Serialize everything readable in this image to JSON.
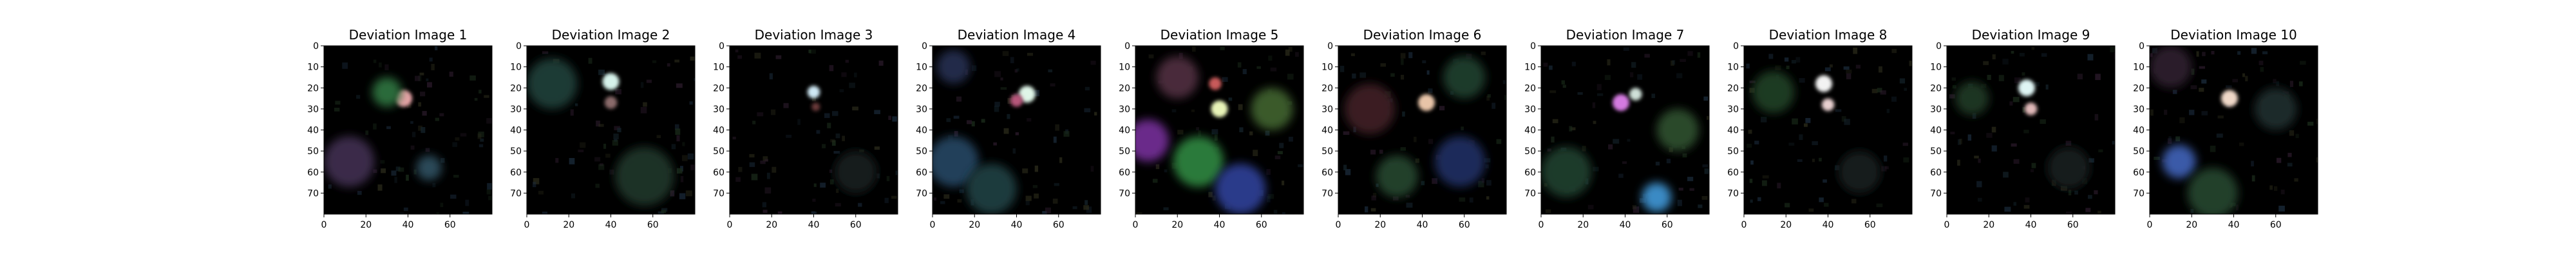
{
  "figure": {
    "background": "#ffffff"
  },
  "chart_data": [
    {
      "type": "heatmap",
      "title": "Deviation Image 1",
      "xlim": [
        0,
        80
      ],
      "ylim": [
        80,
        0
      ],
      "xticks": [
        0,
        20,
        40,
        60
      ],
      "yticks": [
        0,
        10,
        20,
        30,
        40,
        50,
        60,
        70
      ],
      "background": "#000000",
      "highlights": [
        {
          "x": 38,
          "y": 25,
          "r": 4,
          "color": "#e9a4a8"
        },
        {
          "x": 30,
          "y": 22,
          "r": 7,
          "color": "#2a6a3a"
        },
        {
          "x": 12,
          "y": 55,
          "r": 12,
          "color": "#3a2a4a"
        },
        {
          "x": 50,
          "y": 58,
          "r": 6,
          "color": "#2c4a58"
        }
      ]
    },
    {
      "type": "heatmap",
      "title": "Deviation Image 2",
      "xlim": [
        0,
        80
      ],
      "ylim": [
        80,
        0
      ],
      "xticks": [
        0,
        20,
        40,
        60
      ],
      "yticks": [
        0,
        10,
        20,
        30,
        40,
        50,
        60,
        70
      ],
      "background": "#000000",
      "highlights": [
        {
          "x": 40,
          "y": 17,
          "r": 4,
          "color": "#d6f2ea"
        },
        {
          "x": 40,
          "y": 27,
          "r": 3,
          "color": "#8a6a6a"
        },
        {
          "x": 12,
          "y": 18,
          "r": 12,
          "color": "#1c3a34"
        },
        {
          "x": 56,
          "y": 62,
          "r": 14,
          "color": "#1a3028"
        }
      ]
    },
    {
      "type": "heatmap",
      "title": "Deviation Image 3",
      "xlim": [
        0,
        80
      ],
      "ylim": [
        80,
        0
      ],
      "xticks": [
        0,
        20,
        40,
        60
      ],
      "yticks": [
        0,
        10,
        20,
        30,
        40,
        50,
        60,
        70
      ],
      "background": "#000000",
      "highlights": [
        {
          "x": 40,
          "y": 22,
          "r": 3,
          "color": "#cfe8f4"
        },
        {
          "x": 41,
          "y": 29,
          "r": 2,
          "color": "#6a3a3a"
        },
        {
          "x": 60,
          "y": 60,
          "r": 10,
          "color": "#141e1e"
        }
      ]
    },
    {
      "type": "heatmap",
      "title": "Deviation Image 4",
      "xlim": [
        0,
        80
      ],
      "ylim": [
        80,
        0
      ],
      "xticks": [
        0,
        20,
        40,
        60
      ],
      "yticks": [
        0,
        10,
        20,
        30,
        40,
        50,
        60,
        70
      ],
      "background": "#000000",
      "highlights": [
        {
          "x": 45,
          "y": 23,
          "r": 4,
          "color": "#dff5e8"
        },
        {
          "x": 40,
          "y": 26,
          "r": 3,
          "color": "#b6567a"
        },
        {
          "x": 10,
          "y": 55,
          "r": 12,
          "color": "#24405a"
        },
        {
          "x": 28,
          "y": 68,
          "r": 12,
          "color": "#1c3a3c"
        },
        {
          "x": 10,
          "y": 10,
          "r": 8,
          "color": "#242c4a"
        }
      ]
    },
    {
      "type": "heatmap",
      "title": "Deviation Image 5",
      "xlim": [
        0,
        80
      ],
      "ylim": [
        80,
        0
      ],
      "xticks": [
        0,
        20,
        40,
        60
      ],
      "yticks": [
        0,
        10,
        20,
        30,
        40,
        50,
        60,
        70
      ],
      "background": "#000000",
      "highlights": [
        {
          "x": 40,
          "y": 30,
          "r": 4,
          "color": "#e8f4b8"
        },
        {
          "x": 38,
          "y": 18,
          "r": 3,
          "color": "#c85a5a"
        },
        {
          "x": 6,
          "y": 45,
          "r": 10,
          "color": "#6a2a8a"
        },
        {
          "x": 30,
          "y": 55,
          "r": 12,
          "color": "#2a7a3a"
        },
        {
          "x": 50,
          "y": 68,
          "r": 12,
          "color": "#2a3a8a"
        },
        {
          "x": 65,
          "y": 30,
          "r": 10,
          "color": "#3a5a2a"
        },
        {
          "x": 20,
          "y": 15,
          "r": 10,
          "color": "#4a2a3a"
        }
      ]
    },
    {
      "type": "heatmap",
      "title": "Deviation Image 6",
      "xlim": [
        0,
        80
      ],
      "ylim": [
        80,
        0
      ],
      "xticks": [
        0,
        20,
        40,
        60
      ],
      "yticks": [
        0,
        10,
        20,
        30,
        40,
        50,
        60,
        70
      ],
      "background": "#000000",
      "highlights": [
        {
          "x": 42,
          "y": 27,
          "r": 4,
          "color": "#e8c4a8"
        },
        {
          "x": 15,
          "y": 30,
          "r": 12,
          "color": "#3a1c24"
        },
        {
          "x": 58,
          "y": 55,
          "r": 12,
          "color": "#1c2a5a"
        },
        {
          "x": 60,
          "y": 15,
          "r": 10,
          "color": "#1c3a2a"
        },
        {
          "x": 28,
          "y": 62,
          "r": 10,
          "color": "#24402a"
        }
      ]
    },
    {
      "type": "heatmap",
      "title": "Deviation Image 7",
      "xlim": [
        0,
        80
      ],
      "ylim": [
        80,
        0
      ],
      "xticks": [
        0,
        20,
        40,
        60
      ],
      "yticks": [
        0,
        10,
        20,
        30,
        40,
        50,
        60,
        70
      ],
      "background": "#000000",
      "highlights": [
        {
          "x": 38,
          "y": 27,
          "r": 4,
          "color": "#d47ae0"
        },
        {
          "x": 45,
          "y": 23,
          "r": 3,
          "color": "#cfe0d8"
        },
        {
          "x": 55,
          "y": 72,
          "r": 7,
          "color": "#3a8ac4"
        },
        {
          "x": 12,
          "y": 60,
          "r": 12,
          "color": "#1c3a2a"
        },
        {
          "x": 65,
          "y": 40,
          "r": 10,
          "color": "#2a4a2a"
        }
      ]
    },
    {
      "type": "heatmap",
      "title": "Deviation Image 8",
      "xlim": [
        0,
        80
      ],
      "ylim": [
        80,
        0
      ],
      "xticks": [
        0,
        20,
        40,
        60
      ],
      "yticks": [
        0,
        10,
        20,
        30,
        40,
        50,
        60,
        70
      ],
      "background": "#000000",
      "highlights": [
        {
          "x": 38,
          "y": 18,
          "r": 4,
          "color": "#f2f2f2"
        },
        {
          "x": 40,
          "y": 28,
          "r": 3,
          "color": "#e8d0d0"
        },
        {
          "x": 14,
          "y": 22,
          "r": 10,
          "color": "#1c3a24"
        },
        {
          "x": 55,
          "y": 60,
          "r": 10,
          "color": "#141e1a"
        }
      ]
    },
    {
      "type": "heatmap",
      "title": "Deviation Image 9",
      "xlim": [
        0,
        80
      ],
      "ylim": [
        80,
        0
      ],
      "xticks": [
        0,
        20,
        40,
        60
      ],
      "yticks": [
        0,
        10,
        20,
        30,
        40,
        50,
        60,
        70
      ],
      "background": "#000000",
      "highlights": [
        {
          "x": 38,
          "y": 20,
          "r": 4,
          "color": "#dff5f4"
        },
        {
          "x": 40,
          "y": 30,
          "r": 3,
          "color": "#e0b8b8"
        },
        {
          "x": 12,
          "y": 25,
          "r": 8,
          "color": "#1a3424"
        },
        {
          "x": 58,
          "y": 58,
          "r": 10,
          "color": "#141c1c"
        }
      ]
    },
    {
      "type": "heatmap",
      "title": "Deviation Image 10",
      "xlim": [
        0,
        80
      ],
      "ylim": [
        80,
        0
      ],
      "xticks": [
        0,
        20,
        40,
        60
      ],
      "yticks": [
        0,
        10,
        20,
        30,
        40,
        50,
        60,
        70
      ],
      "background": "#000000",
      "highlights": [
        {
          "x": 38,
          "y": 25,
          "r": 4,
          "color": "#f0d8c8"
        },
        {
          "x": 14,
          "y": 55,
          "r": 8,
          "color": "#3a5aa8"
        },
        {
          "x": 30,
          "y": 70,
          "r": 12,
          "color": "#24402a"
        },
        {
          "x": 10,
          "y": 10,
          "r": 10,
          "color": "#2a1c2a"
        },
        {
          "x": 60,
          "y": 30,
          "r": 10,
          "color": "#1c2a2a"
        }
      ]
    }
  ]
}
